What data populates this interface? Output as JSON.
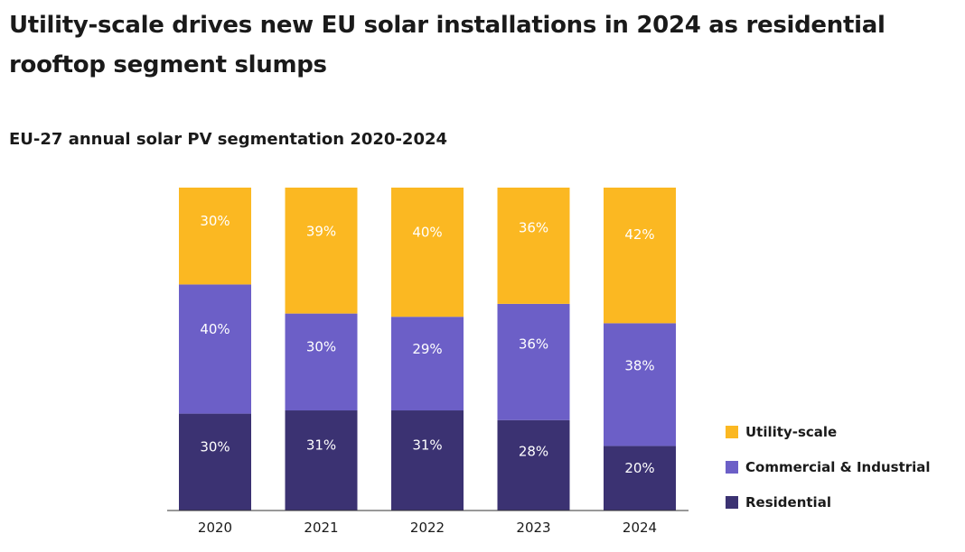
{
  "header": {
    "title": "Utility-scale drives new EU solar installations in 2024 as residential rooftop segment slumps",
    "subtitle": "EU-27 annual solar PV segmentation 2020-2024"
  },
  "legend": {
    "items": [
      {
        "label": "Utility-scale",
        "color": "#fbb822"
      },
      {
        "label": "Commercial & Industrial",
        "color": "#6c5fc7"
      },
      {
        "label": "Residential",
        "color": "#3b3272"
      }
    ]
  },
  "chart_data": {
    "type": "bar",
    "stacked": true,
    "categories": [
      "2020",
      "2021",
      "2022",
      "2023",
      "2024"
    ],
    "series": [
      {
        "name": "Residential",
        "color": "#3b3272",
        "values": [
          30,
          31,
          31,
          28,
          20
        ],
        "labels": [
          "30%",
          "31%",
          "31%",
          "28%",
          "20%"
        ]
      },
      {
        "name": "Commercial & Industrial",
        "color": "#6c5fc7",
        "values": [
          40,
          30,
          29,
          36,
          38
        ],
        "labels": [
          "40%",
          "30%",
          "29%",
          "36%",
          "38%"
        ]
      },
      {
        "name": "Utility-scale",
        "color": "#fbb822",
        "values": [
          30,
          39,
          40,
          36,
          42
        ],
        "labels": [
          "30%",
          "39%",
          "40%",
          "36%",
          "42%"
        ]
      }
    ],
    "ylim": [
      0,
      100
    ],
    "unit": "%",
    "grid": false,
    "legend_position": "right"
  }
}
